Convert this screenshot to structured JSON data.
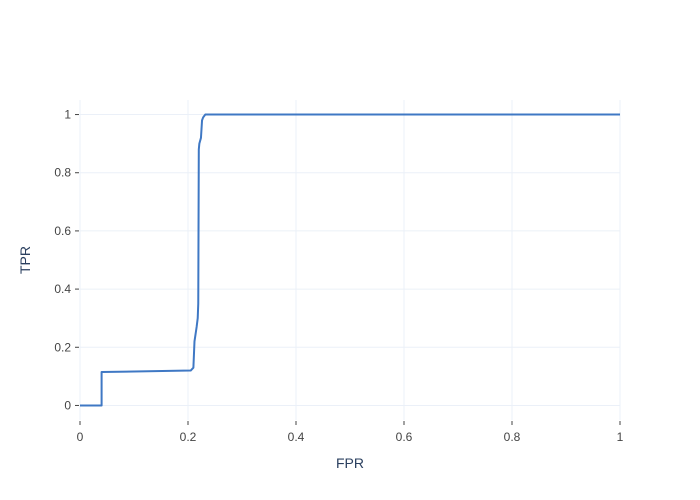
{
  "chart_data": {
    "type": "line",
    "xlabel": "FPR",
    "ylabel": "TPR",
    "xlim": [
      0,
      1
    ],
    "ylim": [
      -0.05,
      1.05
    ],
    "grid": true,
    "x_ticks": [
      0,
      0.2,
      0.4,
      0.6,
      0.8,
      1
    ],
    "x_tick_labels": [
      "0",
      "0.2",
      "0.4",
      "0.6",
      "0.8",
      "1"
    ],
    "y_ticks": [
      0,
      0.2,
      0.4,
      0.6,
      0.8,
      1
    ],
    "y_tick_labels": [
      "0",
      "0.2",
      "0.4",
      "0.6",
      "0.8",
      "1"
    ],
    "series": [
      {
        "color": "#3f78c4",
        "x": [
          0,
          0.04,
          0.04,
          0.205,
          0.21,
          0.212,
          0.216,
          0.218,
          0.219,
          0.22,
          0.221,
          0.224,
          0.225,
          0.226,
          0.228,
          0.23,
          0.232,
          1.0
        ],
        "y": [
          0,
          0,
          0.115,
          0.12,
          0.13,
          0.22,
          0.27,
          0.3,
          0.35,
          0.88,
          0.9,
          0.92,
          0.95,
          0.98,
          0.99,
          0.995,
          1.0,
          1.0
        ]
      }
    ]
  }
}
